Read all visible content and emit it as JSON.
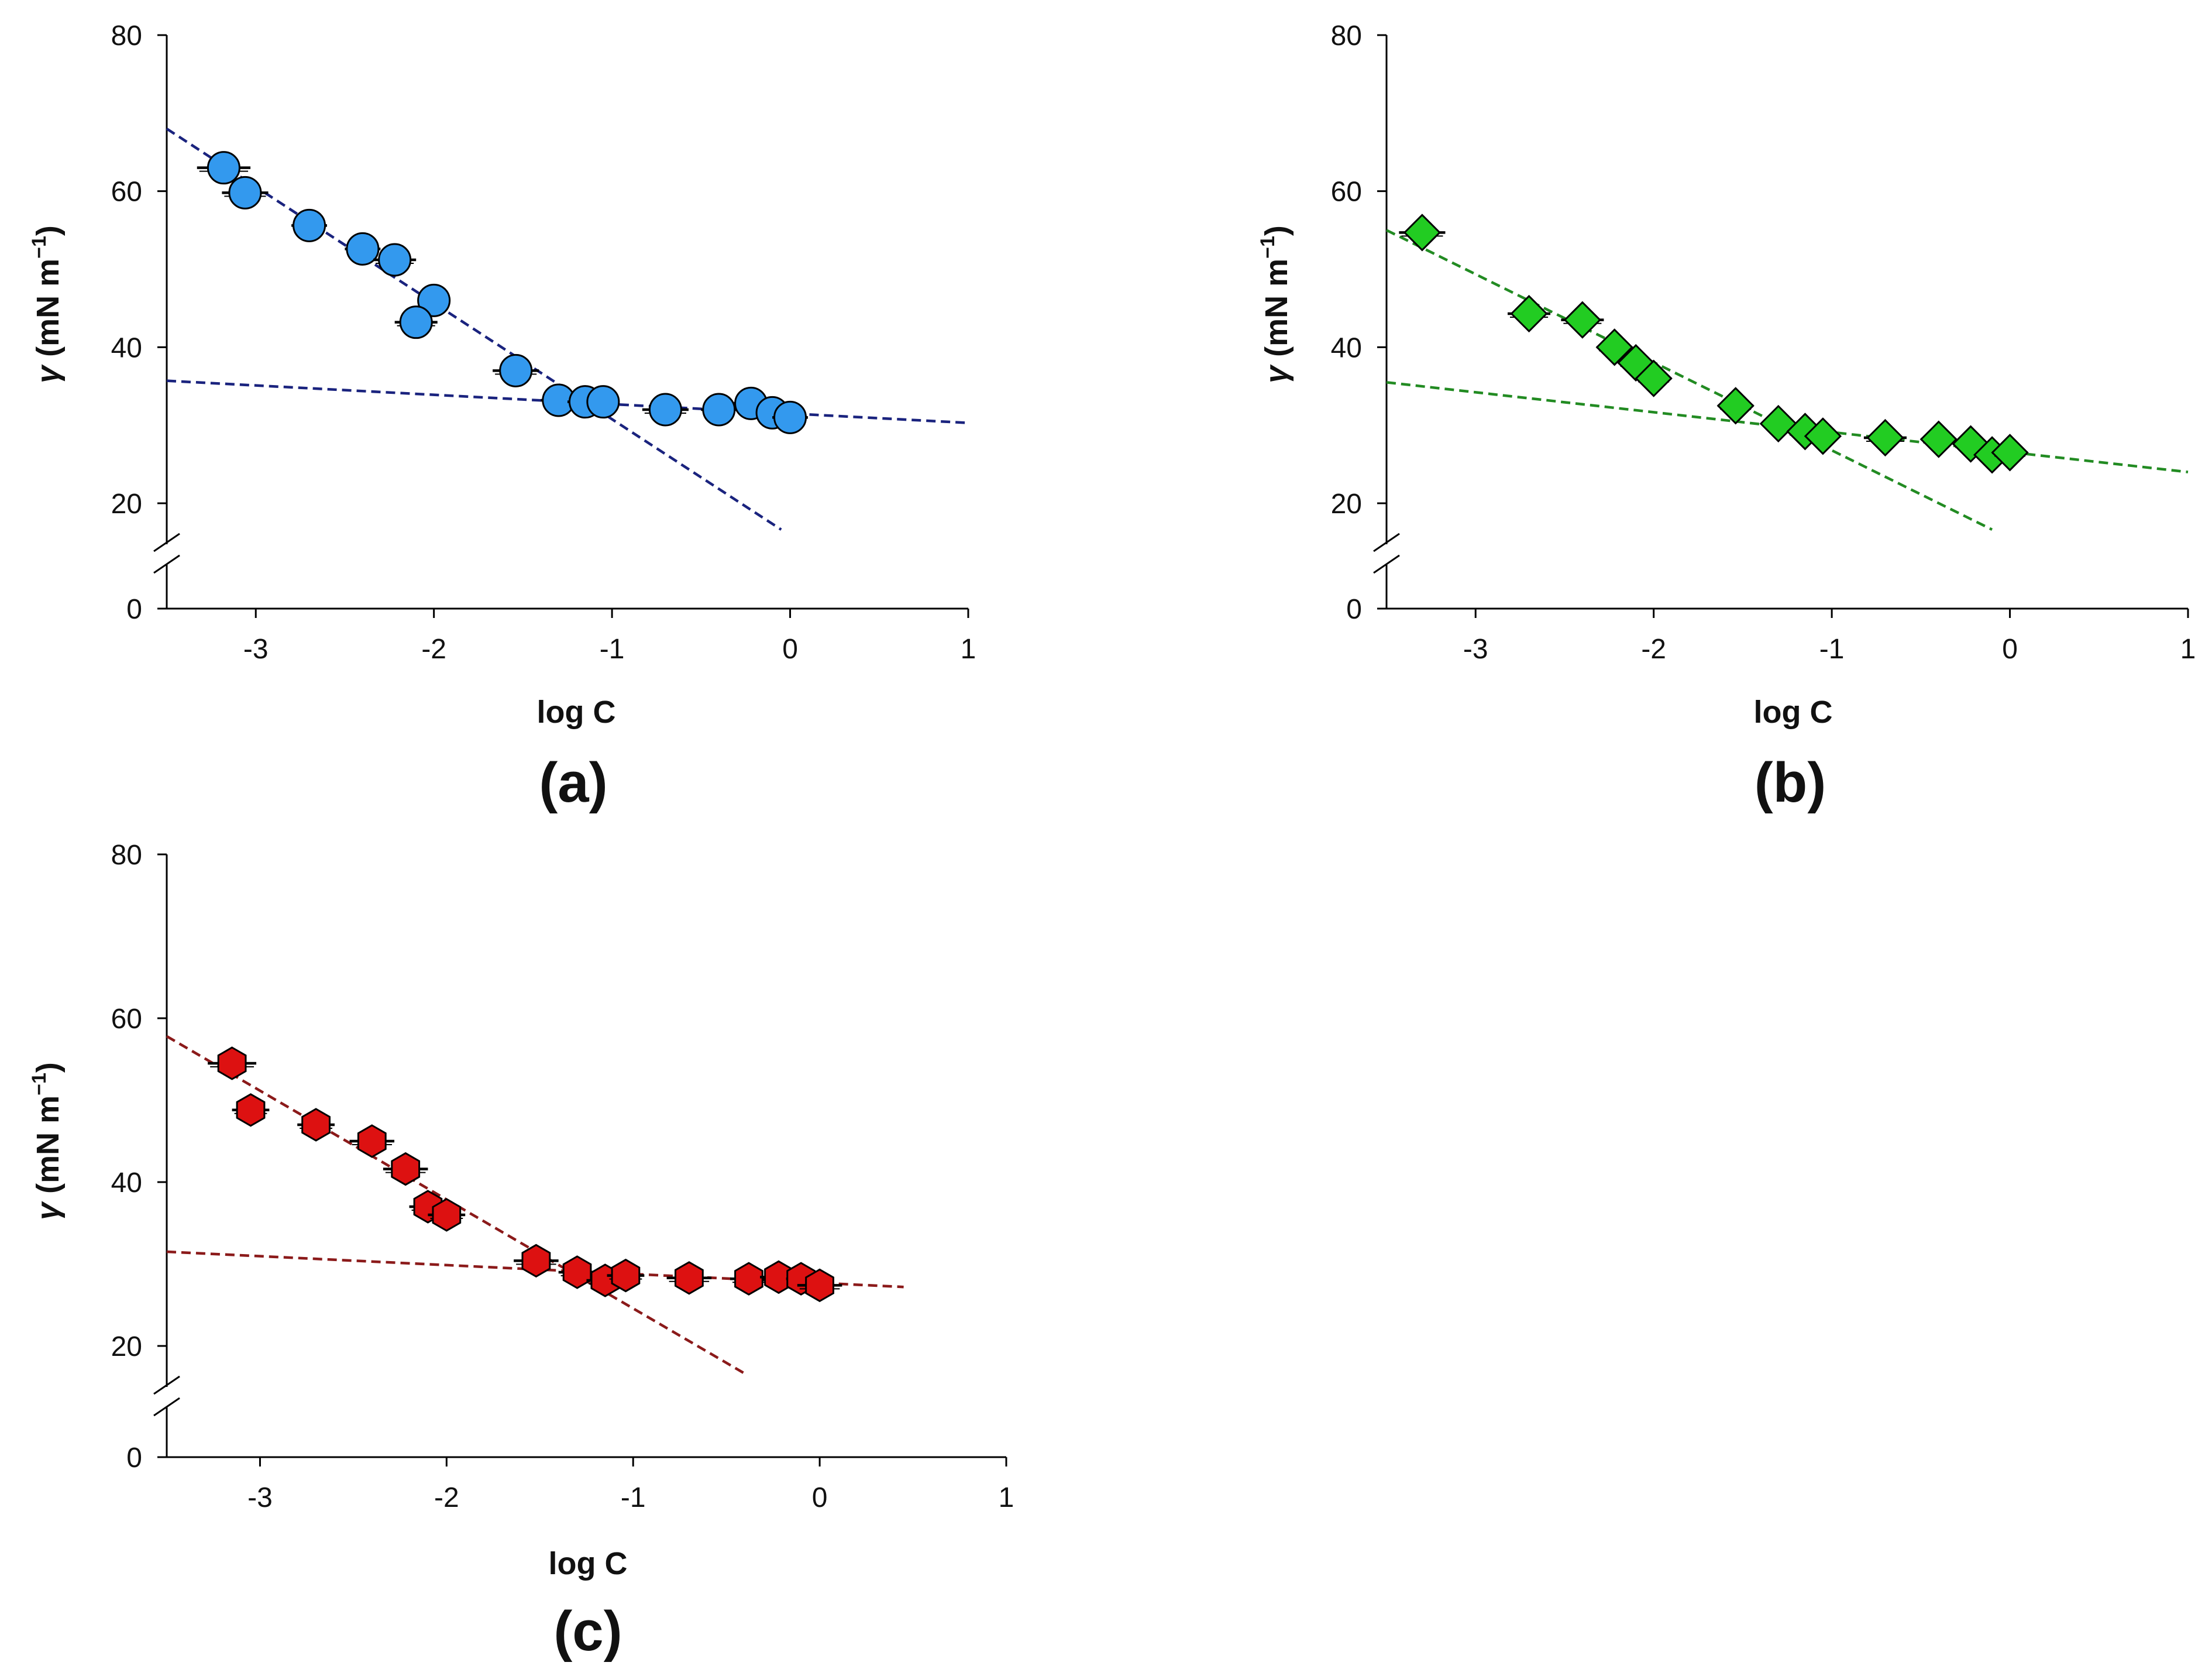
{
  "chart_data": [
    {
      "type": "scatter",
      "panel_label": "(a)",
      "xlabel": "log C",
      "ylabel_symbol": "γ",
      "ylabel_units": "(mN m",
      "ylabel_sup": "−1",
      "ylabel_close": ")",
      "xlim": [
        -3.5,
        1
      ],
      "ylim": [
        0,
        80
      ],
      "axis_break": true,
      "xticks": [
        -3,
        -2,
        -1,
        0,
        1
      ],
      "xtick_labels": [
        "-3",
        "-2",
        "-1",
        "0",
        "1"
      ],
      "yticks": [
        0,
        20,
        40,
        60,
        80
      ],
      "ytick_labels": [
        "0",
        "20",
        "40",
        "60",
        "80"
      ],
      "marker": "circle",
      "marker_color": "#3399ee",
      "line_color": "#1a237e",
      "points": [
        {
          "x": -3.18,
          "y": 63.0,
          "xerr": 0.15
        },
        {
          "x": -3.06,
          "y": 59.8,
          "xerr": 0.13
        },
        {
          "x": -2.7,
          "y": 55.6,
          "xerr": 0.1
        },
        {
          "x": -2.4,
          "y": 52.6,
          "xerr": 0.1
        },
        {
          "x": -2.22,
          "y": 51.2,
          "xerr": 0.12
        },
        {
          "x": -2.0,
          "y": 46.0,
          "xerr": 0.08
        },
        {
          "x": -2.1,
          "y": 43.2,
          "xerr": 0.12
        },
        {
          "x": -1.54,
          "y": 37.0,
          "xerr": 0.13
        },
        {
          "x": -1.3,
          "y": 33.2,
          "xerr": 0.1
        },
        {
          "x": -1.15,
          "y": 33.0,
          "xerr": 0.1
        },
        {
          "x": -1.05,
          "y": 33.0,
          "xerr": 0.08
        },
        {
          "x": -0.7,
          "y": 32.0,
          "xerr": 0.13
        },
        {
          "x": -0.4,
          "y": 32.0,
          "xerr": 0.1
        },
        {
          "x": -0.22,
          "y": 32.8,
          "xerr": 0.1
        },
        {
          "x": -0.1,
          "y": 31.6,
          "xerr": 0.08
        },
        {
          "x": 0.0,
          "y": 31.0,
          "xerr": 0.1
        }
      ],
      "fit_lines": [
        {
          "x1": -3.5,
          "y1": 68.0,
          "x2": -0.05,
          "y2": 15.0
        },
        {
          "x1": -3.5,
          "y1": 35.7,
          "x2": 1.0,
          "y2": 30.3
        }
      ]
    },
    {
      "type": "scatter",
      "panel_label": "(b)",
      "xlabel": "log C",
      "ylabel_symbol": "γ",
      "ylabel_units": "(mN m",
      "ylabel_sup": "−1",
      "ylabel_close": ")",
      "xlim": [
        -3.5,
        1
      ],
      "ylim": [
        0,
        80
      ],
      "axis_break": true,
      "xticks": [
        -3,
        -2,
        -1,
        0,
        1
      ],
      "xtick_labels": [
        "-3",
        "-2",
        "-1",
        "0",
        "1"
      ],
      "yticks": [
        0,
        20,
        40,
        60,
        80
      ],
      "ytick_labels": [
        "0",
        "20",
        "40",
        "60",
        "80"
      ],
      "marker": "diamond",
      "marker_color": "#22cc22",
      "line_color": "#228b22",
      "points": [
        {
          "x": -3.3,
          "y": 54.7,
          "xerr": 0.13
        },
        {
          "x": -2.7,
          "y": 44.3,
          "xerr": 0.12
        },
        {
          "x": -2.4,
          "y": 43.5,
          "xerr": 0.12
        },
        {
          "x": -2.22,
          "y": 40.0,
          "xerr": 0.1
        },
        {
          "x": -2.1,
          "y": 38.0,
          "xerr": 0.1
        },
        {
          "x": -2.0,
          "y": 36.0,
          "xerr": 0.1
        },
        {
          "x": -1.54,
          "y": 32.5,
          "xerr": 0.1
        },
        {
          "x": -1.3,
          "y": 30.2,
          "xerr": 0.08
        },
        {
          "x": -1.15,
          "y": 29.2,
          "xerr": 0.1
        },
        {
          "x": -1.05,
          "y": 28.6,
          "xerr": 0.08
        },
        {
          "x": -0.7,
          "y": 28.4,
          "xerr": 0.12
        },
        {
          "x": -0.4,
          "y": 28.2,
          "xerr": 0.1
        },
        {
          "x": -0.22,
          "y": 27.6,
          "xerr": 0.1
        },
        {
          "x": -0.1,
          "y": 26.2,
          "xerr": 0.08
        },
        {
          "x": 0.0,
          "y": 26.5,
          "xerr": 0.1
        }
      ],
      "fit_lines": [
        {
          "x1": -3.5,
          "y1": 55.0,
          "x2": -0.1,
          "y2": 15.0
        },
        {
          "x1": -3.5,
          "y1": 35.5,
          "x2": 1.0,
          "y2": 24.0
        }
      ]
    },
    {
      "type": "scatter",
      "panel_label": "(c)",
      "xlabel": "log C",
      "ylabel_symbol": "γ",
      "ylabel_units": "(mN m",
      "ylabel_sup": "−1",
      "ylabel_close": ")",
      "xlim": [
        -3.5,
        1
      ],
      "ylim": [
        0,
        80
      ],
      "axis_break": true,
      "xticks": [
        -3,
        -2,
        -1,
        0,
        1
      ],
      "xtick_labels": [
        "-3",
        "-2",
        "-1",
        "0",
        "1"
      ],
      "yticks": [
        0,
        20,
        40,
        60,
        80
      ],
      "ytick_labels": [
        "0",
        "20",
        "40",
        "60",
        "80"
      ],
      "marker": "hexagon",
      "marker_color": "#dd1111",
      "line_color": "#8b1a1a",
      "points": [
        {
          "x": -3.15,
          "y": 54.5,
          "xerr": 0.13
        },
        {
          "x": -3.05,
          "y": 48.8,
          "xerr": 0.1
        },
        {
          "x": -2.7,
          "y": 47.0,
          "xerr": 0.1
        },
        {
          "x": -2.4,
          "y": 45.0,
          "xerr": 0.12
        },
        {
          "x": -2.22,
          "y": 41.6,
          "xerr": 0.12
        },
        {
          "x": -2.1,
          "y": 37.0,
          "xerr": 0.1
        },
        {
          "x": -2.0,
          "y": 36.0,
          "xerr": 0.1
        },
        {
          "x": -1.52,
          "y": 30.4,
          "xerr": 0.12
        },
        {
          "x": -1.3,
          "y": 29.0,
          "xerr": 0.1
        },
        {
          "x": -1.15,
          "y": 28.0,
          "xerr": 0.1
        },
        {
          "x": -1.04,
          "y": 28.6,
          "xerr": 0.1
        },
        {
          "x": -0.7,
          "y": 28.3,
          "xerr": 0.12
        },
        {
          "x": -0.38,
          "y": 28.2,
          "xerr": 0.1
        },
        {
          "x": -0.22,
          "y": 28.4,
          "xerr": 0.1
        },
        {
          "x": -0.1,
          "y": 28.2,
          "xerr": 0.08
        },
        {
          "x": 0.0,
          "y": 27.4,
          "xerr": 0.12
        }
      ],
      "fit_lines": [
        {
          "x1": -3.5,
          "y1": 57.8,
          "x2": -0.4,
          "y2": 15.0
        },
        {
          "x1": -3.5,
          "y1": 31.5,
          "x2": 0.45,
          "y2": 27.2
        }
      ]
    }
  ]
}
